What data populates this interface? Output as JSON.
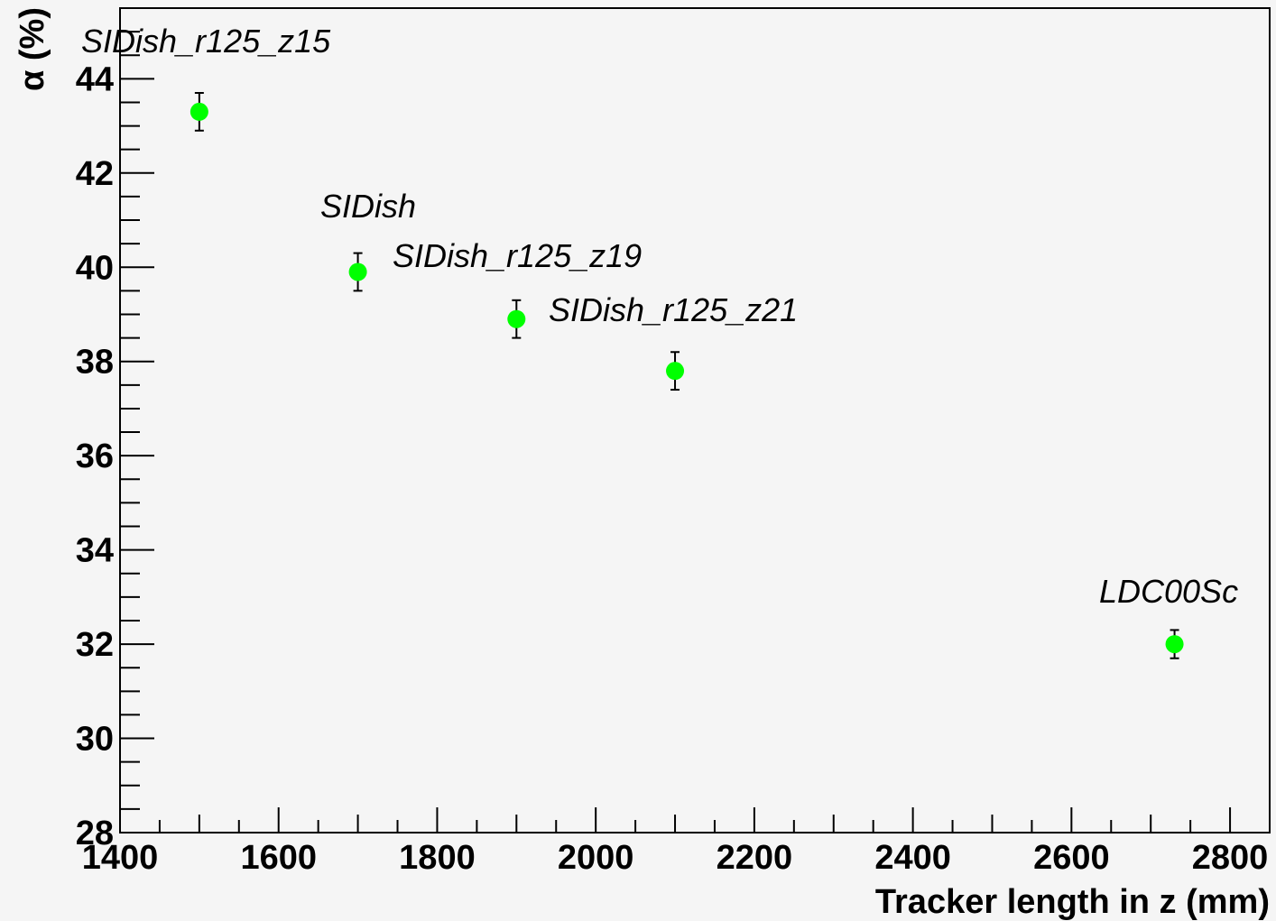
{
  "chart_data": {
    "type": "scatter",
    "xlabel": "Tracker length in z (mm)",
    "ylabel": "α (%)",
    "xlim": [
      1400,
      2850
    ],
    "ylim": [
      28,
      45.5
    ],
    "x_ticks": [
      1400,
      1600,
      1800,
      2000,
      2200,
      2400,
      2600,
      2800
    ],
    "y_ticks": [
      28,
      30,
      32,
      34,
      36,
      38,
      40,
      42,
      44
    ],
    "grid": false,
    "marker_color": "#00ff00",
    "points": [
      {
        "x": 1500,
        "y": 43.3,
        "err": 0.4
      },
      {
        "x": 1700,
        "y": 39.9,
        "err": 0.4
      },
      {
        "x": 1900,
        "y": 38.9,
        "err": 0.4
      },
      {
        "x": 2100,
        "y": 37.8,
        "err": 0.4
      },
      {
        "x": 2730,
        "y": 32.0,
        "err": 0.3
      }
    ],
    "annotations": [
      {
        "text": "SIDish_r125_z15",
        "x": 1500
      },
      {
        "text": "SIDish",
        "x": 1700
      },
      {
        "text": "SIDish_r125_z19",
        "x": 1700
      },
      {
        "text": "SIDish_r125_z21",
        "x": 1900
      },
      {
        "text": "LDC00Sc",
        "x": 2730
      }
    ]
  }
}
